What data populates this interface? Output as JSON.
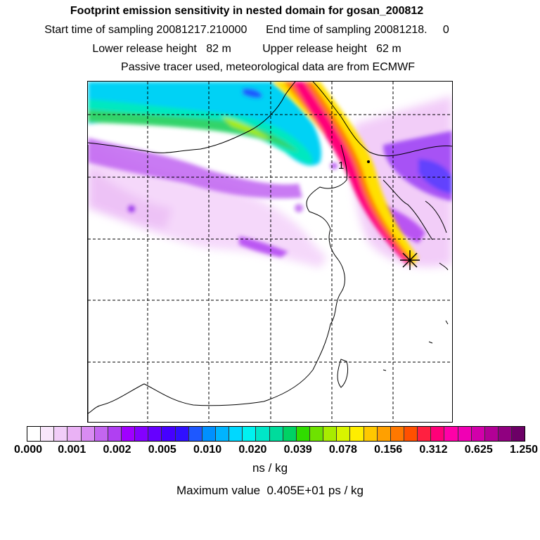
{
  "titles": {
    "line1": "Footprint emission sensitivity in nested domain for gosan_200812",
    "line2": "Start time of sampling 20081217.210000      End time of sampling 20081218.     0",
    "line3": "Lower release height   82 m          Upper release height   62 m",
    "line4": "Passive tracer used, meteorological data are from ECMWF"
  },
  "map": {
    "point_label": "1",
    "grid": "on",
    "colors": {
      "plume_core": "#ff00b4",
      "plume_mid": "#ff4a00",
      "plume_outer": "#ffe000",
      "teal": "#00e6ee",
      "violet": "#a400ff",
      "pale": "#f2ccf9"
    }
  },
  "colorbar": {
    "colors": [
      "#ffffff",
      "#f8e6fb",
      "#f1cdf8",
      "#eab2f5",
      "#d98cf2",
      "#c366f0",
      "#b040f2",
      "#a000ff",
      "#8400ff",
      "#6600ff",
      "#4600ff",
      "#3010ff",
      "#1e58ff",
      "#0090ff",
      "#00b4ff",
      "#00d8ff",
      "#00f2f0",
      "#00e6c8",
      "#00dc9c",
      "#00d264",
      "#30dc00",
      "#6ee200",
      "#a8ec00",
      "#d8f400",
      "#ffee00",
      "#ffc800",
      "#ffa000",
      "#ff7800",
      "#ff5000",
      "#ff2040",
      "#ff0078",
      "#ff00a8",
      "#f000b4",
      "#d200aa",
      "#b20096",
      "#900080",
      "#6c0066"
    ],
    "ticks": [
      "0.000",
      "0.001",
      "0.002",
      "0.005",
      "0.010",
      "0.020",
      "0.039",
      "0.078",
      "0.156",
      "0.312",
      "0.625",
      "1.250"
    ],
    "unit": "ns / kg"
  },
  "max_value_text": "Maximum value  0.405E+01 ps / kg"
}
